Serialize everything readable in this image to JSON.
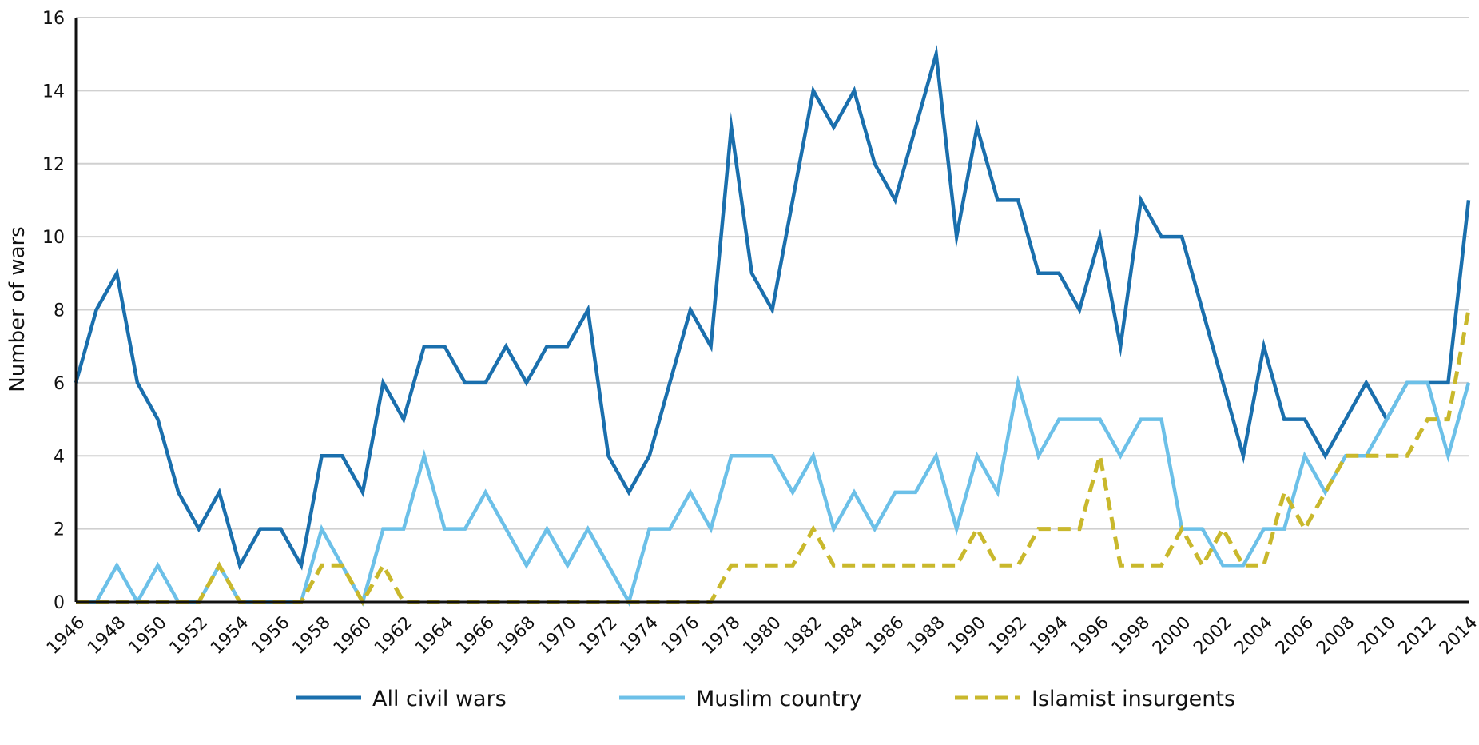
{
  "chart_data": {
    "type": "line",
    "title": "",
    "xlabel": "",
    "ylabel": "Number of wars",
    "ylim": [
      0,
      16
    ],
    "yticks": [
      0,
      2,
      4,
      6,
      8,
      10,
      12,
      14,
      16
    ],
    "xlim": [
      1946,
      2014
    ],
    "xticks": [
      1946,
      1948,
      1950,
      1952,
      1954,
      1956,
      1958,
      1960,
      1962,
      1964,
      1966,
      1968,
      1970,
      1972,
      1974,
      1976,
      1978,
      1980,
      1982,
      1984,
      1986,
      1988,
      1990,
      1992,
      1994,
      1996,
      1998,
      2000,
      2002,
      2004,
      2006,
      2008,
      2010,
      2012,
      2014
    ],
    "grid": "horizontal",
    "legend_position": "bottom",
    "x": [
      1946,
      1947,
      1948,
      1949,
      1950,
      1951,
      1952,
      1953,
      1954,
      1955,
      1956,
      1957,
      1958,
      1959,
      1960,
      1961,
      1962,
      1963,
      1964,
      1965,
      1966,
      1967,
      1968,
      1969,
      1970,
      1971,
      1972,
      1973,
      1974,
      1975,
      1976,
      1977,
      1978,
      1979,
      1980,
      1981,
      1982,
      1983,
      1984,
      1985,
      1986,
      1987,
      1988,
      1989,
      1990,
      1991,
      1992,
      1993,
      1994,
      1995,
      1996,
      1997,
      1998,
      1999,
      2000,
      2001,
      2002,
      2003,
      2004,
      2005,
      2006,
      2007,
      2008,
      2009,
      2010,
      2011,
      2012,
      2013,
      2014
    ],
    "series": [
      {
        "name": "All civil wars",
        "color": "#1a6fad",
        "dash": "solid",
        "values": [
          6,
          8,
          9,
          6,
          5,
          3,
          2,
          3,
          1,
          2,
          2,
          1,
          4,
          4,
          3,
          6,
          5,
          7,
          7,
          6,
          6,
          7,
          6,
          7,
          7,
          8,
          4,
          3,
          4,
          6,
          8,
          7,
          13,
          9,
          8,
          11,
          14,
          13,
          14,
          12,
          11,
          13,
          15,
          10,
          13,
          11,
          11,
          9,
          9,
          8,
          10,
          7,
          11,
          10,
          10,
          8,
          6,
          4,
          7,
          5,
          5,
          4,
          5,
          6,
          5,
          6,
          6,
          6,
          11
        ]
      },
      {
        "name": "Muslim country",
        "color": "#6cc0e8",
        "dash": "solid",
        "values": [
          0,
          0,
          1,
          0,
          1,
          0,
          0,
          1,
          0,
          0,
          0,
          0,
          2,
          1,
          0,
          2,
          2,
          4,
          2,
          2,
          3,
          2,
          1,
          2,
          1,
          2,
          1,
          0,
          2,
          2,
          3,
          2,
          4,
          4,
          4,
          3,
          4,
          2,
          3,
          2,
          3,
          3,
          4,
          2,
          4,
          3,
          6,
          4,
          5,
          5,
          5,
          4,
          5,
          5,
          2,
          2,
          1,
          1,
          2,
          2,
          4,
          3,
          4,
          4,
          5,
          6,
          6,
          4,
          6
        ]
      },
      {
        "name": "Islamist insurgents",
        "color": "#c9b82c",
        "dash": "dashed",
        "values": [
          0,
          0,
          0,
          0,
          0,
          0,
          0,
          1,
          0,
          0,
          0,
          0,
          1,
          1,
          0,
          1,
          0,
          0,
          0,
          0,
          0,
          0,
          0,
          0,
          0,
          0,
          0,
          0,
          0,
          0,
          0,
          0,
          1,
          1,
          1,
          1,
          2,
          1,
          1,
          1,
          1,
          1,
          1,
          1,
          2,
          1,
          1,
          2,
          2,
          2,
          4,
          1,
          1,
          1,
          2,
          1,
          2,
          1,
          1,
          3,
          2,
          3,
          4,
          4,
          4,
          4,
          5,
          5,
          8
        ]
      }
    ]
  }
}
